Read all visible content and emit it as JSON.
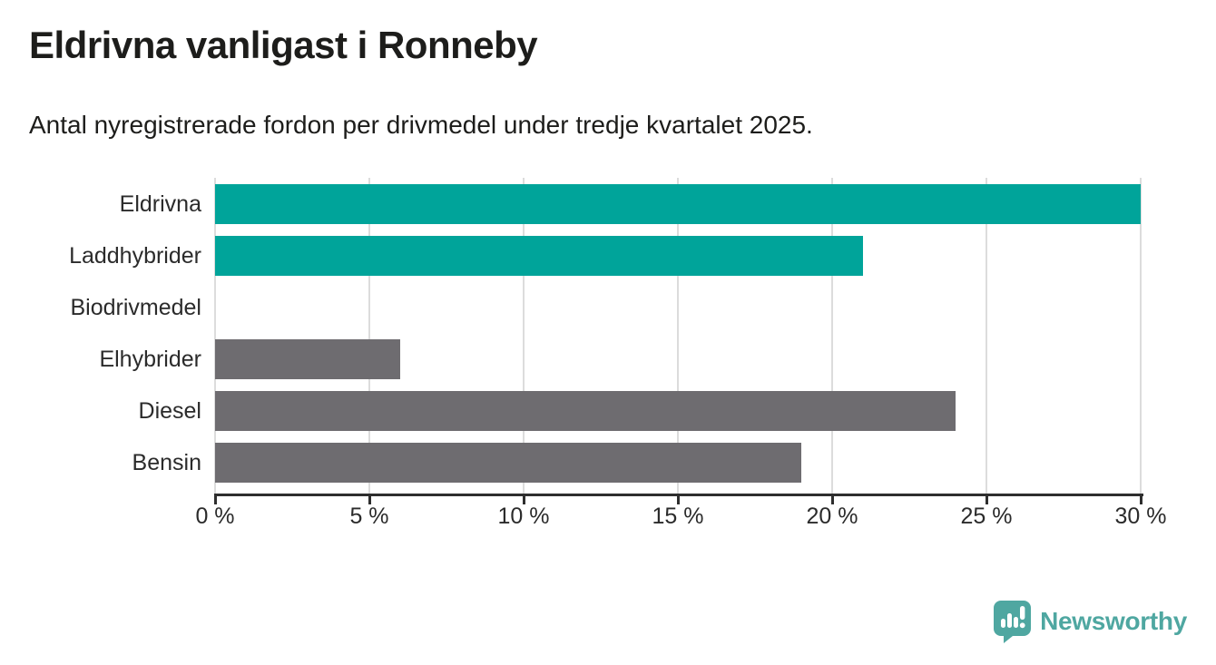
{
  "title": "Eldrivna vanligast i Ronneby",
  "subtitle": "Antal nyregistrerade fordon per drivmedel under tredje kvartalet 2025.",
  "chart_data": {
    "type": "bar",
    "orientation": "horizontal",
    "categories": [
      "Eldrivna",
      "Laddhybrider",
      "Biodrivmedel",
      "Elhybrider",
      "Diesel",
      "Bensin"
    ],
    "values": [
      30,
      21,
      0,
      6,
      24,
      19
    ],
    "unit": "%",
    "bar_colors": [
      "#00a49a",
      "#00a49a",
      "#6e6c70",
      "#6e6c70",
      "#6e6c70",
      "#6e6c70"
    ],
    "xlim": [
      0,
      30
    ],
    "tick_values": [
      0,
      5,
      10,
      15,
      20,
      25,
      30
    ],
    "tick_labels": [
      "0 %",
      "5 %",
      "10 %",
      "15 %",
      "20 %",
      "25 %",
      "30 %"
    ],
    "grid": true,
    "legend": false,
    "title": "Eldrivna vanligast i Ronneby",
    "xlabel": "",
    "ylabel": ""
  },
  "colors": {
    "accent_teal": "#00a49a",
    "neutral_gray": "#6e6c70",
    "gridline": "#dcdcdc",
    "axis": "#2e2e2e",
    "text": "#1d1d1b",
    "brand_teal": "#4fa7a1"
  },
  "branding": {
    "name": "Newsworthy",
    "icon": "speech-bubble-bar-chart-icon"
  }
}
